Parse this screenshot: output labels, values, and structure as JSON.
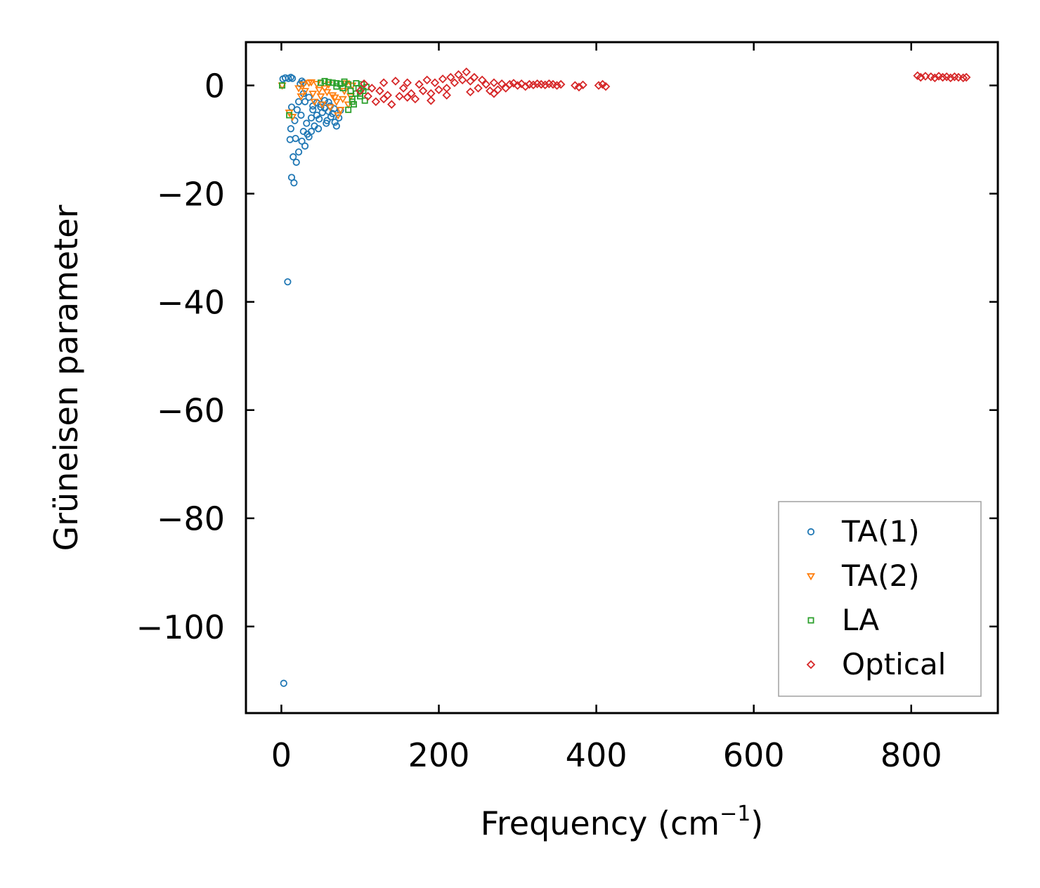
{
  "chart_data": {
    "type": "scatter",
    "title": "",
    "xlabel_main": "Frequency (cm",
    "xlabel_sup": "−1",
    "xlabel_end": ")",
    "ylabel": "Grüneisen parameter",
    "xlim": [
      -45,
      910
    ],
    "ylim": [
      -116,
      8
    ],
    "xticks": [
      0,
      200,
      400,
      600,
      800
    ],
    "xtick_labels": [
      "0",
      "200",
      "400",
      "600",
      "800"
    ],
    "yticks": [
      0,
      -20,
      -40,
      -60,
      -80,
      -100
    ],
    "ytick_labels": [
      "0",
      "−20",
      "−40",
      "−60",
      "−80",
      "−100"
    ],
    "legend_position": "lower-right",
    "grid": false,
    "series": [
      {
        "name": "TA(1)",
        "marker": "circle",
        "color": "#1f77b4",
        "points": [
          [
            3,
            -110.5
          ],
          [
            8,
            -36.3
          ],
          [
            13,
            -17
          ],
          [
            16,
            -18
          ],
          [
            15,
            -13.2
          ],
          [
            19,
            -14.2
          ],
          [
            22,
            -12.3
          ],
          [
            26,
            -10.3
          ],
          [
            30,
            -11.2
          ],
          [
            11,
            -10
          ],
          [
            18,
            -9.8
          ],
          [
            12,
            -8
          ],
          [
            17,
            -6.5
          ],
          [
            13,
            -4
          ],
          [
            20,
            -4.5
          ],
          [
            22,
            -3
          ],
          [
            25,
            -5.5
          ],
          [
            28,
            -8.5
          ],
          [
            32,
            -7
          ],
          [
            35,
            -9.5
          ],
          [
            38,
            -6
          ],
          [
            40,
            -4.5
          ],
          [
            42,
            -7.5
          ],
          [
            45,
            -5.5
          ],
          [
            48,
            -6.2
          ],
          [
            50,
            -3.5
          ],
          [
            52,
            -5
          ],
          [
            55,
            -4.2
          ],
          [
            58,
            -6.5
          ],
          [
            60,
            -4.8
          ],
          [
            62,
            -3.8
          ],
          [
            65,
            -5.2
          ],
          [
            68,
            -6.8
          ],
          [
            70,
            -7.5
          ],
          [
            73,
            -6
          ],
          [
            75,
            -4.6
          ],
          [
            45,
            -3.2
          ],
          [
            55,
            -2.8
          ],
          [
            60,
            -3.1
          ],
          [
            35,
            -2.2
          ],
          [
            30,
            -3
          ],
          [
            28,
            -1.5
          ],
          [
            26,
            0.8
          ],
          [
            24,
            0.3
          ],
          [
            2,
            1.2
          ],
          [
            5,
            1.4
          ],
          [
            9,
            1.3
          ],
          [
            12,
            1.5
          ],
          [
            14,
            1.3
          ],
          [
            28,
            0.5
          ],
          [
            40,
            -3.8
          ],
          [
            50,
            -4
          ],
          [
            63,
            -5.8
          ],
          [
            67,
            -4.3
          ],
          [
            57,
            -7
          ],
          [
            47,
            -8
          ],
          [
            38,
            -8.5
          ],
          [
            33,
            -9
          ]
        ]
      },
      {
        "name": "TA(2)",
        "marker": "triangle-down",
        "color": "#ff7f0e",
        "points": [
          [
            1,
            0
          ],
          [
            10,
            -5
          ],
          [
            14,
            -5.8
          ],
          [
            25,
            -2
          ],
          [
            30,
            -1
          ],
          [
            35,
            0.5
          ],
          [
            40,
            -1.5
          ],
          [
            45,
            0.3
          ],
          [
            50,
            -2
          ],
          [
            55,
            -0.5
          ],
          [
            60,
            0.2
          ],
          [
            65,
            -1.8
          ],
          [
            70,
            -3
          ],
          [
            75,
            -4.5
          ],
          [
            78,
            -2.5
          ],
          [
            80,
            -1
          ],
          [
            82,
            0.4
          ],
          [
            85,
            -3.5
          ],
          [
            88,
            -2
          ],
          [
            90,
            0
          ],
          [
            42,
            -3
          ],
          [
            52,
            -3.5
          ],
          [
            62,
            -4
          ],
          [
            72,
            -5.5
          ],
          [
            68,
            -2.2
          ],
          [
            58,
            -1.2
          ],
          [
            48,
            -0.8
          ],
          [
            38,
            0.6
          ],
          [
            28,
            0.2
          ],
          [
            22,
            -0.5
          ]
        ]
      },
      {
        "name": "LA",
        "marker": "square",
        "color": "#2ca02c",
        "points": [
          [
            1,
            0
          ],
          [
            10,
            -5.5
          ],
          [
            60,
            0.6
          ],
          [
            65,
            0.5
          ],
          [
            70,
            0.4
          ],
          [
            75,
            0.3
          ],
          [
            80,
            0.7
          ],
          [
            85,
            0.2
          ],
          [
            88,
            -1
          ],
          [
            90,
            -2.5
          ],
          [
            92,
            -3.5
          ],
          [
            95,
            -1.5
          ],
          [
            98,
            -0.5
          ],
          [
            100,
            -2
          ],
          [
            102,
            0.2
          ],
          [
            104,
            -1
          ],
          [
            106,
            -2.8
          ],
          [
            108,
            -0.3
          ],
          [
            85,
            -4.5
          ],
          [
            90,
            -3
          ],
          [
            78,
            -0.5
          ],
          [
            70,
            -0.2
          ],
          [
            95,
            0.4
          ],
          [
            100,
            -1.5
          ],
          [
            55,
            0.8
          ],
          [
            50,
            0.5
          ]
        ]
      },
      {
        "name": "Optical",
        "marker": "diamond",
        "color": "#d62728",
        "points": [
          [
            100,
            -1
          ],
          [
            105,
            0.3
          ],
          [
            110,
            -2
          ],
          [
            115,
            -0.5
          ],
          [
            120,
            -3
          ],
          [
            125,
            -1
          ],
          [
            130,
            0.5
          ],
          [
            135,
            -1.8
          ],
          [
            140,
            -3.5
          ],
          [
            145,
            0.8
          ],
          [
            150,
            -2
          ],
          [
            155,
            -0.5
          ],
          [
            160,
            0.5
          ],
          [
            165,
            -1.5
          ],
          [
            170,
            -2.5
          ],
          [
            175,
            0.2
          ],
          [
            180,
            -1
          ],
          [
            185,
            1
          ],
          [
            190,
            -1.5
          ],
          [
            195,
            0.5
          ],
          [
            200,
            -0.8
          ],
          [
            205,
            1.2
          ],
          [
            210,
            -0.5
          ],
          [
            215,
            1.5
          ],
          [
            220,
            0.5
          ],
          [
            225,
            2
          ],
          [
            230,
            1
          ],
          [
            235,
            2.5
          ],
          [
            240,
            0.8
          ],
          [
            245,
            1.5
          ],
          [
            250,
            -0.5
          ],
          [
            255,
            1
          ],
          [
            260,
            0.2
          ],
          [
            265,
            -1
          ],
          [
            270,
            0.5
          ],
          [
            275,
            -0.8
          ],
          [
            280,
            0.3
          ],
          [
            285,
            -0.5
          ],
          [
            290,
            0.2
          ],
          [
            295,
            0.4
          ],
          [
            300,
            0
          ],
          [
            305,
            0.3
          ],
          [
            310,
            -0.2
          ],
          [
            315,
            0.2
          ],
          [
            320,
            0.1
          ],
          [
            325,
            0.3
          ],
          [
            330,
            0.2
          ],
          [
            335,
            0.1
          ],
          [
            340,
            0.3
          ],
          [
            345,
            0.2
          ],
          [
            350,
            0
          ],
          [
            355,
            0.2
          ],
          [
            373,
            0
          ],
          [
            378,
            -0.3
          ],
          [
            383,
            0.1
          ],
          [
            403,
            0
          ],
          [
            408,
            0.2
          ],
          [
            412,
            -0.2
          ],
          [
            130,
            -2.5
          ],
          [
            160,
            -2.2
          ],
          [
            190,
            -2.8
          ],
          [
            210,
            -1.8
          ],
          [
            240,
            -1.2
          ],
          [
            270,
            -1.5
          ],
          [
            808,
            1.8
          ],
          [
            812,
            1.5
          ],
          [
            818,
            1.7
          ],
          [
            825,
            1.6
          ],
          [
            830,
            1.4
          ],
          [
            835,
            1.7
          ],
          [
            840,
            1.5
          ],
          [
            845,
            1.6
          ],
          [
            850,
            1.4
          ],
          [
            855,
            1.6
          ],
          [
            860,
            1.5
          ],
          [
            866,
            1.4
          ],
          [
            870,
            1.5
          ]
        ]
      }
    ]
  }
}
